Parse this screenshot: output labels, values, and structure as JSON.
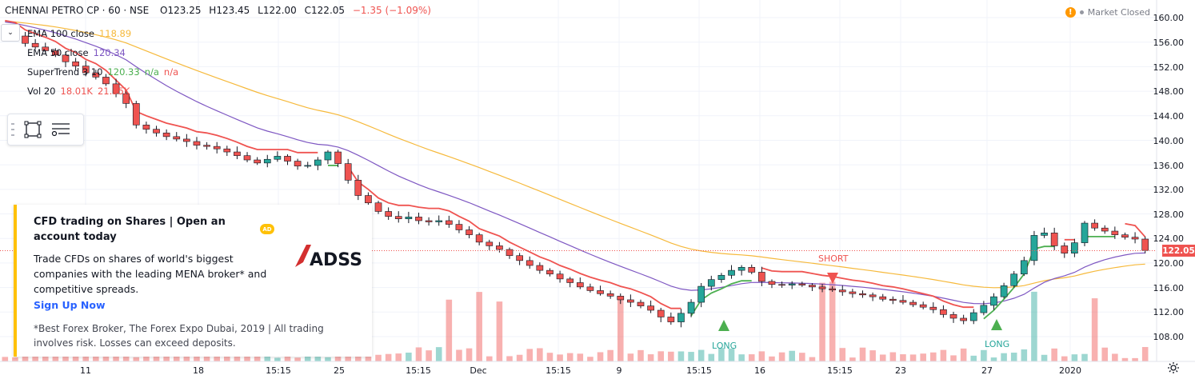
{
  "header": {
    "symbol": "CHENNAI PETRO CP · 60 · NSE",
    "ohlc_o": "O123.25",
    "ohlc_h": "H123.45",
    "ohlc_l": "L122.00",
    "ohlc_c": "C122.05",
    "change": "−1.35 (−1.09%)",
    "market_status": "Market Closed",
    "warning_icon": "!"
  },
  "legend": {
    "collapse_icon": "chevron-down-icon",
    "indicators": [
      {
        "name": "EMA 100 close",
        "value": "118.89",
        "color": "#f6b93b"
      },
      {
        "name": "EMA 50 close",
        "value": "120.34",
        "color": "#7e57c2"
      },
      {
        "name": "SuperTrend 3 10",
        "value": "120.33",
        "extra1": "n/a",
        "extra2": "n/a",
        "color": "#4caf50"
      },
      {
        "name": "Vol 20",
        "value": "18.01K",
        "extra1": "21.55K",
        "color": "#ef5350"
      }
    ]
  },
  "drawing_tools": {
    "items": [
      "rectangle-icon",
      "list-settings-icon"
    ]
  },
  "ad": {
    "title": "CFD trading on Shares | Open an account today",
    "badge": "AD",
    "logo_text": "ADSS",
    "body": "Trade CFDs on shares of world's biggest companies with the leading MENA broker* and competitive spreads.",
    "cta": "Sign Up Now",
    "disclaimer": "*Best Forex Broker, The Forex Expo Dubai, 2019 | All trading involves risk. Losses can exceed deposits."
  },
  "price_axis": {
    "labels": [
      "160.00",
      "156.00",
      "152.00",
      "148.00",
      "144.00",
      "140.00",
      "136.00",
      "132.00",
      "128.00",
      "124.00",
      "120.00",
      "116.00",
      "112.00",
      "108.00"
    ],
    "current_price": "122.05"
  },
  "time_axis": {
    "labels": [
      "11",
      "18",
      "15:15",
      "25",
      "15:15",
      "Dec",
      "15:15",
      "9",
      "15:15",
      "16",
      "15:15",
      "23",
      "27",
      "2020"
    ]
  },
  "signals": [
    {
      "label": "SHORT",
      "type": "short"
    },
    {
      "label": "LONG",
      "type": "long"
    },
    {
      "label": "LONG",
      "type": "long"
    }
  ],
  "colors": {
    "up": "#26a69a",
    "down": "#ef5350",
    "ema100": "#f6b93b",
    "ema50": "#7e57c2",
    "supertrend_up": "#4caf50",
    "supertrend_down": "#ef5350",
    "ad_accent": "#ffc107",
    "link": "#2962ff"
  },
  "chart_data": {
    "type": "candlestick",
    "ylim": [
      106,
      162
    ],
    "close_series": [
      157.5,
      157.0,
      155.8,
      155.2,
      154.6,
      153.9,
      152.8,
      152.1,
      151.0,
      150.3,
      149.2,
      147.6,
      146.0,
      142.5,
      141.8,
      141.2,
      140.6,
      140.2,
      139.8,
      139.2,
      139.0,
      138.6,
      138.1,
      137.5,
      136.8,
      136.3,
      136.9,
      137.4,
      136.6,
      135.8,
      135.9,
      136.8,
      138.1,
      136.2,
      133.5,
      131.0,
      129.8,
      128.4,
      127.6,
      127.2,
      127.5,
      126.9,
      126.7,
      126.9,
      126.3,
      125.4,
      124.6,
      123.4,
      122.8,
      122.2,
      121.2,
      120.4,
      119.6,
      118.8,
      118.2,
      117.4,
      116.8,
      116.1,
      115.5,
      115.0,
      114.6,
      114.0,
      113.6,
      113.0,
      112.3,
      111.2,
      110.4,
      111.8,
      113.6,
      116.2,
      117.3,
      118.0,
      118.8,
      119.3,
      118.5,
      117.0,
      116.5,
      116.4,
      116.6,
      116.4,
      116.1,
      115.8,
      115.6,
      115.3,
      115.0,
      114.8,
      114.5,
      114.1,
      113.9,
      113.6,
      113.2,
      112.8,
      112.4,
      111.6,
      111.0,
      110.6,
      111.9,
      113.1,
      114.5,
      116.3,
      118.2,
      120.4,
      124.5,
      124.9,
      122.8,
      121.6,
      123.3,
      126.5,
      125.7,
      125.2,
      124.6,
      124.2,
      123.9,
      122.05
    ],
    "ema100_latest": 118.89,
    "ema50_latest": 120.34,
    "supertrend_latest": 120.33,
    "volume_latest": "18.01K",
    "volume_ma": "21.55K"
  }
}
